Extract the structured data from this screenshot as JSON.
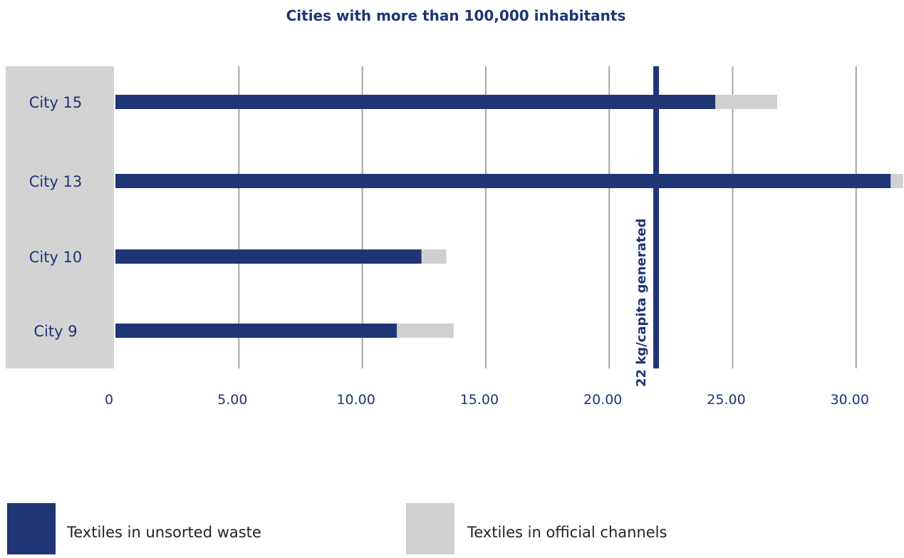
{
  "chart_data": {
    "type": "bar",
    "orientation": "horizontal",
    "stacked": true,
    "title": "Cities with more than 100,000 inhabitants",
    "xlabel": "",
    "ylabel": "",
    "categories": [
      "City 15",
      "City 13",
      "City 10",
      "City 9"
    ],
    "series": [
      {
        "name": "Textiles in unsorted waste",
        "color": "#1f3575",
        "values": [
          24.3,
          31.4,
          12.4,
          11.4
        ]
      },
      {
        "name": "Textiles in official channels",
        "color": "#d0d0d0",
        "values": [
          2.5,
          0.5,
          1.0,
          2.3
        ]
      }
    ],
    "xlim": [
      0,
      31.9
    ],
    "xticks": [
      {
        "value": 0,
        "label": "0"
      },
      {
        "value": 5,
        "label": "5.00"
      },
      {
        "value": 10,
        "label": "10.00"
      },
      {
        "value": 15,
        "label": "15.00"
      },
      {
        "value": 20,
        "label": "20.00"
      },
      {
        "value": 25,
        "label": "25.00"
      },
      {
        "value": 30,
        "label": "30.00"
      }
    ],
    "reference_line": {
      "value": 21.9,
      "label": "22 kg/capita generated",
      "color": "#1f3575"
    },
    "grid": true,
    "legend_position": "bottom"
  }
}
